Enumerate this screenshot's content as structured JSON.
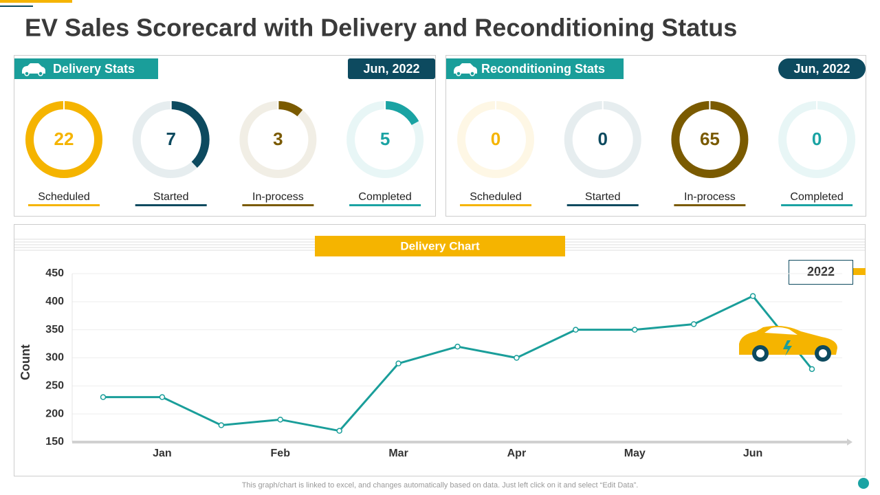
{
  "title": "EV Sales Scorecard with Delivery and Reconditioning Status",
  "panels": [
    {
      "heading": "Delivery Stats",
      "date": "Jun, 2022",
      "stats": [
        {
          "label": "Scheduled",
          "value": 22,
          "ring": 100,
          "color": "#f5b400"
        },
        {
          "label": "Started",
          "value": 7,
          "ring": 38,
          "color": "#0d4a5f"
        },
        {
          "label": "In-process",
          "value": 3,
          "ring": 11,
          "color": "#7a5a00"
        },
        {
          "label": "Completed",
          "value": 5,
          "ring": 17,
          "color": "#1aa3a3"
        }
      ]
    },
    {
      "heading": "Reconditioning Stats",
      "date": "Jun, 2022",
      "stats": [
        {
          "label": "Scheduled",
          "value": 0,
          "ring": 0,
          "color": "#f5b400"
        },
        {
          "label": "Started",
          "value": 0,
          "ring": 0,
          "color": "#0d4a5f"
        },
        {
          "label": "In-process",
          "value": 65,
          "ring": 100,
          "color": "#7a5a00"
        },
        {
          "label": "Completed",
          "value": 0,
          "ring": 0,
          "color": "#1aa3a3"
        }
      ]
    }
  ],
  "chart_data": {
    "type": "line",
    "title": "Delivery Chart",
    "y_label": "Count",
    "categories": [
      null,
      "Jan",
      null,
      "Feb",
      null,
      "Mar",
      null,
      "Apr",
      null,
      "May",
      null,
      "Jun",
      null
    ],
    "series": [
      {
        "name": "2022",
        "color": "#1a9e9a",
        "values": [
          230,
          230,
          180,
          190,
          170,
          290,
          320,
          300,
          350,
          350,
          360,
          410,
          280
        ]
      }
    ],
    "ylim": [
      150,
      450
    ],
    "yticks": [
      150,
      200,
      250,
      300,
      350,
      400,
      450
    ],
    "grid": true
  },
  "footer": "This graph/chart is linked to excel, and changes automatically based on data. Just left click on it and select “Edit Data”."
}
